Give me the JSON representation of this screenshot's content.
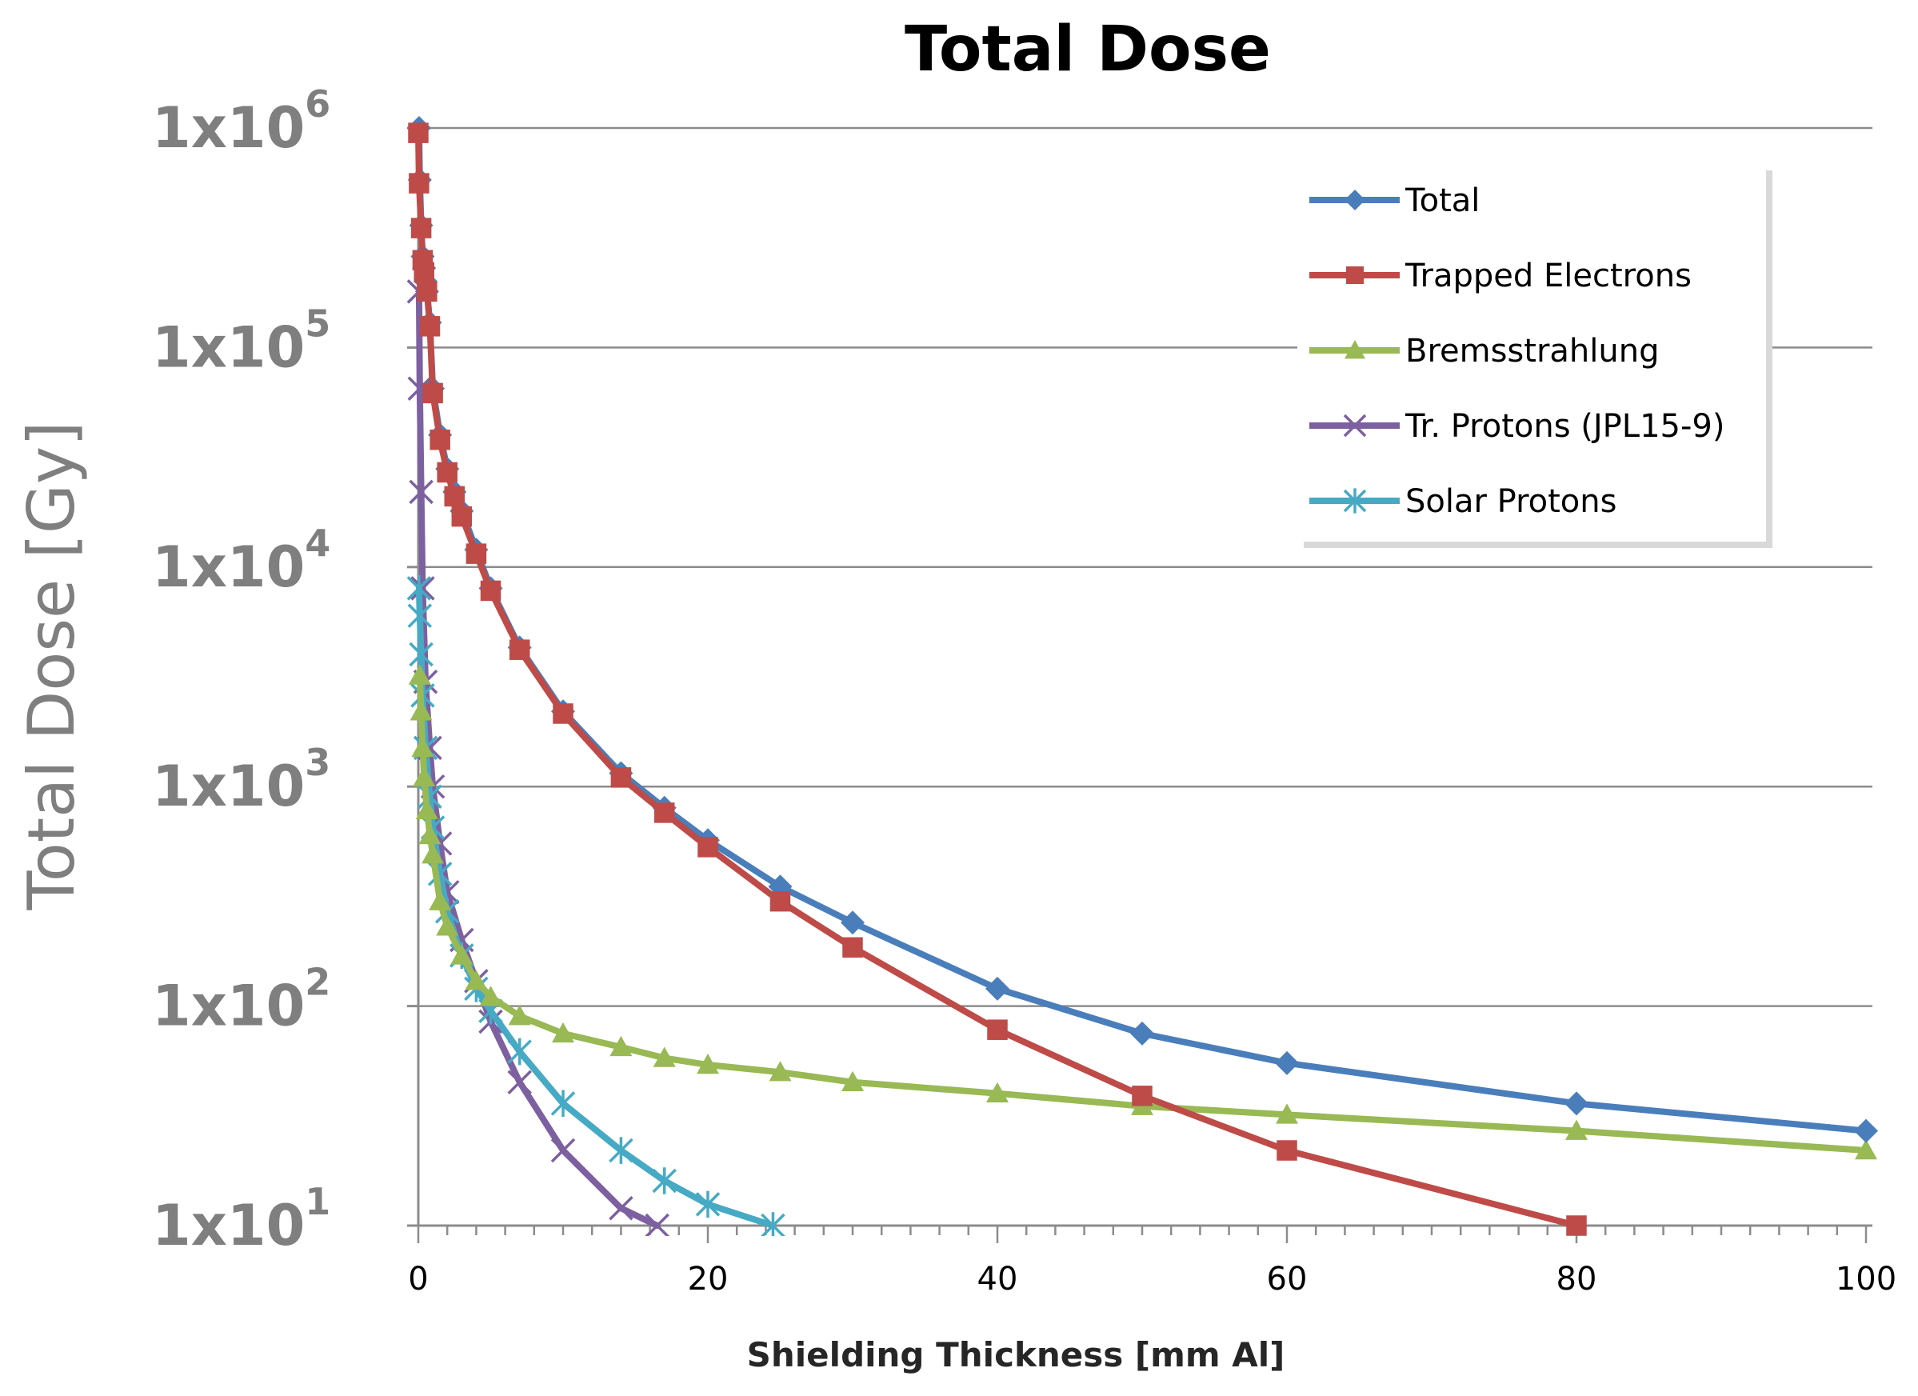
{
  "chart_data": {
    "type": "line",
    "title": "Total Dose",
    "xlabel": "Shielding Thickness [mm Al]",
    "ylabel": "Total Dose [Gy]",
    "xlim": [
      0,
      100
    ],
    "ylim": [
      10,
      1000000
    ],
    "yscale": "log",
    "xticks": [
      0,
      20,
      40,
      60,
      80,
      100
    ],
    "yticks": [
      {
        "value": 10,
        "base": "1x10",
        "exp": "1"
      },
      {
        "value": 100,
        "base": "1x10",
        "exp": "2"
      },
      {
        "value": 1000,
        "base": "1x10",
        "exp": "3"
      },
      {
        "value": 10000,
        "base": "1x10",
        "exp": "4"
      },
      {
        "value": 100000,
        "base": "1x10",
        "exp": "5"
      },
      {
        "value": 1000000,
        "base": "1x10",
        "exp": "6"
      }
    ],
    "grid": "horizontal",
    "legend_position": "top-right",
    "series": [
      {
        "name": "Total",
        "color": "#4a7ebb",
        "marker": "diamond",
        "x": [
          0.05,
          0.1,
          0.2,
          0.3,
          0.4,
          0.5,
          0.6,
          0.8,
          1.0,
          1.5,
          2.0,
          2.5,
          3.0,
          4.0,
          5.0,
          7.0,
          10,
          14,
          17,
          20,
          25,
          30,
          40,
          50,
          60,
          80,
          100
        ],
        "y": [
          1000000,
          580000,
          360000,
          260000,
          230000,
          200000,
          180000,
          130000,
          65000,
          40000,
          28000,
          22000,
          18000,
          12000,
          8000,
          4300,
          2200,
          1150,
          800,
          570,
          350,
          240,
          120,
          75,
          55,
          36,
          27
        ]
      },
      {
        "name": "Trapped Electrons",
        "color": "#be4b48",
        "marker": "square",
        "x": [
          0,
          0.05,
          0.2,
          0.3,
          0.4,
          0.6,
          0.8,
          1.0,
          1.5,
          2.0,
          2.5,
          3.0,
          4.0,
          5.0,
          7.0,
          10,
          14,
          17,
          20,
          25,
          30,
          40,
          50,
          60,
          80
        ],
        "y": [
          950000,
          560000,
          350000,
          250000,
          220000,
          180000,
          125000,
          62000,
          38000,
          27000,
          21000,
          17000,
          11500,
          7800,
          4200,
          2150,
          1100,
          760,
          530,
          300,
          185,
          78,
          39,
          22,
          10
        ]
      },
      {
        "name": "Bremsstrahlung",
        "color": "#98b954",
        "marker": "triangle",
        "x": [
          0.1,
          0.2,
          0.3,
          0.4,
          0.6,
          0.8,
          1.0,
          1.5,
          2.0,
          3.0,
          4.0,
          5.0,
          7.0,
          10,
          14,
          17,
          20,
          25,
          30,
          40,
          50,
          60,
          80,
          100
        ],
        "y": [
          3200,
          2200,
          1500,
          1100,
          780,
          600,
          490,
          300,
          230,
          170,
          130,
          110,
          90,
          75,
          65,
          58,
          54,
          50,
          45,
          40,
          35,
          32,
          27,
          22
        ]
      },
      {
        "name": "Tr. Protons (JPL15-9)",
        "color": "#7d60a0",
        "marker": "x",
        "x": [
          0.05,
          0.1,
          0.2,
          0.3,
          0.5,
          0.8,
          1.0,
          1.5,
          2.0,
          3.0,
          4.0,
          5.0,
          7.0,
          10,
          14,
          16.5
        ],
        "y": [
          180000,
          65000,
          22000,
          8000,
          3000,
          1500,
          1000,
          550,
          330,
          200,
          130,
          85,
          45,
          22,
          12,
          10
        ]
      },
      {
        "name": "Solar Protons",
        "color": "#46aac5",
        "marker": "star",
        "x": [
          0.05,
          0.1,
          0.2,
          0.3,
          0.5,
          0.8,
          1.0,
          1.5,
          2.0,
          3.0,
          4.0,
          5.0,
          7.0,
          10,
          14,
          17,
          20,
          24.5
        ],
        "y": [
          8000,
          6000,
          4000,
          2600,
          1500,
          900,
          650,
          400,
          270,
          170,
          120,
          95,
          62,
          36,
          22,
          16,
          12.5,
          10
        ]
      }
    ]
  }
}
